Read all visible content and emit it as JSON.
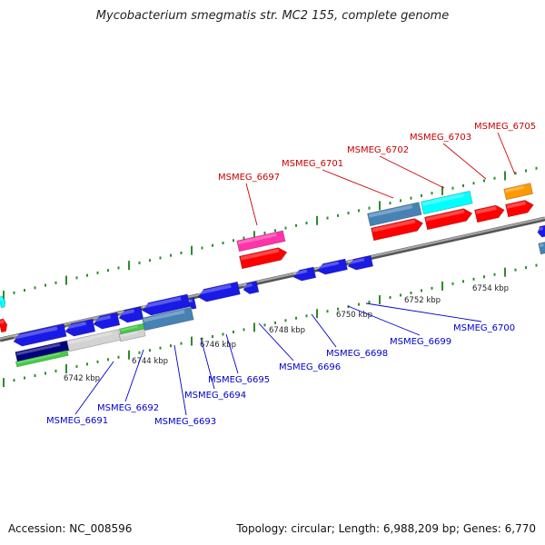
{
  "title": "Mycobacterium smegmatis str. MC2 155, complete genome",
  "footer": {
    "accession": "Accession: NC_008596",
    "summary": "Topology: circular; Length: 6,988,209 bp; Genes: 6,770"
  },
  "colors": {
    "backbone": "#808080",
    "ticks": "#2e8b2e",
    "forward_label": "#cc0000",
    "reverse_label": "#0000cc",
    "red": "#ff0000",
    "blue": "#1a1ae6",
    "steelblue": "#4682b4",
    "cyan": "#00ffff",
    "orange": "#ff9900",
    "magenta": "#ff33aa",
    "green": "#44cc44",
    "navy": "#000080",
    "lightgray": "#d3d3d3"
  },
  "kbp_labels": [
    "6742 kbp",
    "6744 kbp",
    "6746 kbp",
    "6748 kbp",
    "6750 kbp",
    "6752 kbp",
    "6754 kbp"
  ],
  "forward_genes": [
    "MSMEG_6697",
    "MSMEG_6701",
    "MSMEG_6702",
    "MSMEG_6703",
    "MSMEG_6705"
  ],
  "reverse_genes": [
    "MSMEG_6691",
    "MSMEG_6692",
    "MSMEG_6693",
    "MSMEG_6694",
    "MSMEG_6695",
    "MSMEG_6696",
    "MSMEG_6698",
    "MSMEG_6699",
    "MSMEG_6700"
  ]
}
